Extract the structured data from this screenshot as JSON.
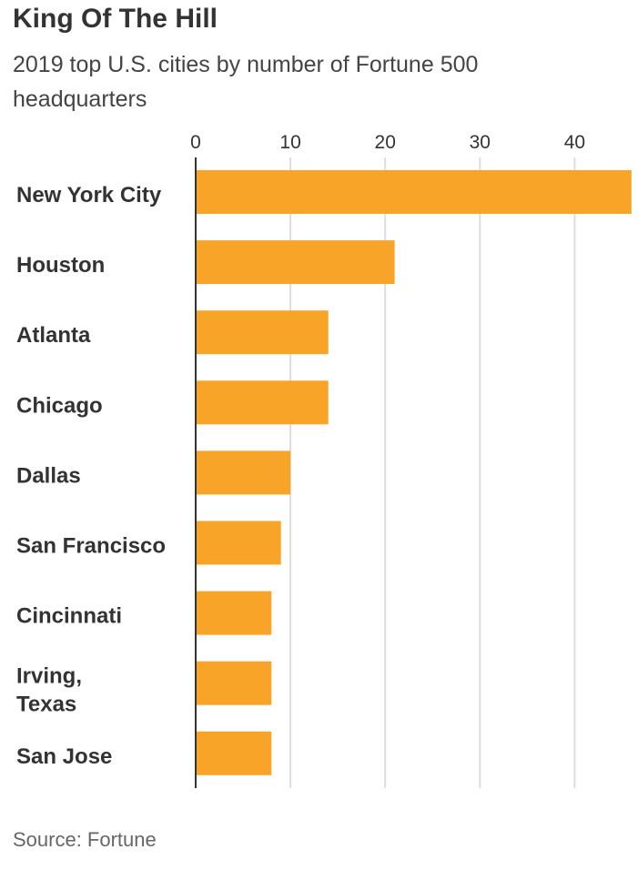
{
  "chart_data": {
    "type": "bar",
    "orientation": "horizontal",
    "title": "King Of The Hill",
    "subtitle": "2019 top U.S. cities by number of Fortune 500 headquarters",
    "source": "Source: Fortune",
    "categories": [
      "New York City",
      "Houston",
      "Atlanta",
      "Chicago",
      "Dallas",
      "San Francisco",
      "Cincinnati",
      "Irving, Texas",
      "San Jose"
    ],
    "category_lines": [
      [
        "New York City"
      ],
      [
        "Houston"
      ],
      [
        "Atlanta"
      ],
      [
        "Chicago"
      ],
      [
        "Dallas"
      ],
      [
        "San Francisco"
      ],
      [
        "Cincinnati"
      ],
      [
        "Irving,",
        "Texas"
      ],
      [
        "San Jose"
      ]
    ],
    "values": [
      46,
      21,
      14,
      14,
      10,
      9,
      8,
      8,
      8
    ],
    "xlim": [
      0,
      46
    ],
    "xticks": [
      0,
      10,
      20,
      30,
      40
    ],
    "xaxis_position": "top",
    "grid": true,
    "bar_color": "#f8a428",
    "grid_color": "#dddddd"
  }
}
